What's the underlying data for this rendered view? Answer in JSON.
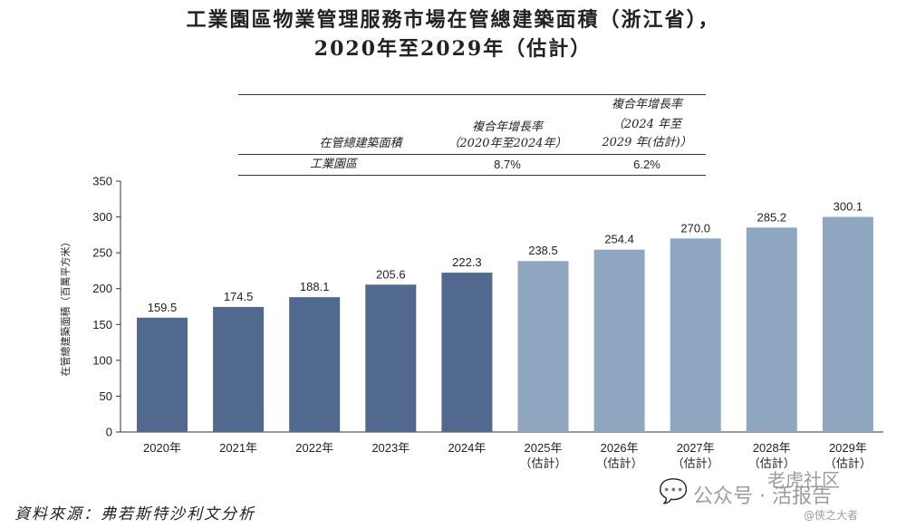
{
  "title_line1": "工業園區物業管理服務市場在管總建築面積（浙江省），",
  "title_line2": "2020年至2029年（估計）",
  "cagr_table": {
    "header_col0": "在管總建築面積",
    "header_col1_line1": "複合年增長率",
    "header_col1_line2": "（2020年至2024年）",
    "header_col2_line1": "複合年增長率",
    "header_col2_line2": "（2024 年至",
    "header_col2_line3": "2029 年(估計)）",
    "row_label": "工業園區",
    "row_value1": "8.7%",
    "row_value2": "6.2%"
  },
  "chart_data": {
    "type": "bar",
    "title": "工業園區物業管理服務市場在管總建築面積（浙江省），2020年至2029年（估計）",
    "ylabel": "在管總建築面積（百萬平方米）",
    "xlabel": "",
    "ylim": [
      0,
      350
    ],
    "yticks": [
      0,
      50,
      100,
      150,
      200,
      250,
      300,
      350
    ],
    "grid": false,
    "categories": [
      [
        "2020年"
      ],
      [
        "2021年"
      ],
      [
        "2022年"
      ],
      [
        "2023年"
      ],
      [
        "2024年"
      ],
      [
        "2025年",
        "（估計）"
      ],
      [
        "2026年",
        "（估計）"
      ],
      [
        "2027年",
        "（估計）"
      ],
      [
        "2028年",
        "（估計）"
      ],
      [
        "2029年",
        "（估計）"
      ]
    ],
    "values": [
      159.5,
      174.5,
      188.1,
      205.6,
      222.3,
      238.5,
      254.4,
      270.0,
      285.2,
      300.1
    ],
    "value_labels": [
      "159.5",
      "174.5",
      "188.1",
      "205.6",
      "222.3",
      "238.5",
      "254.4",
      "270.0",
      "285.2",
      "300.1"
    ],
    "colors": {
      "historical": "#51698f",
      "estimated": "#8fa6c1"
    },
    "estimated_from_index": 5
  },
  "source": "資料來源：弗若斯特沙利文分析",
  "watermark": {
    "icon": "wechat-icon",
    "line1": "公众号 · 活报告",
    "tag": "老虎社区",
    "line2": "@侠之大者"
  }
}
